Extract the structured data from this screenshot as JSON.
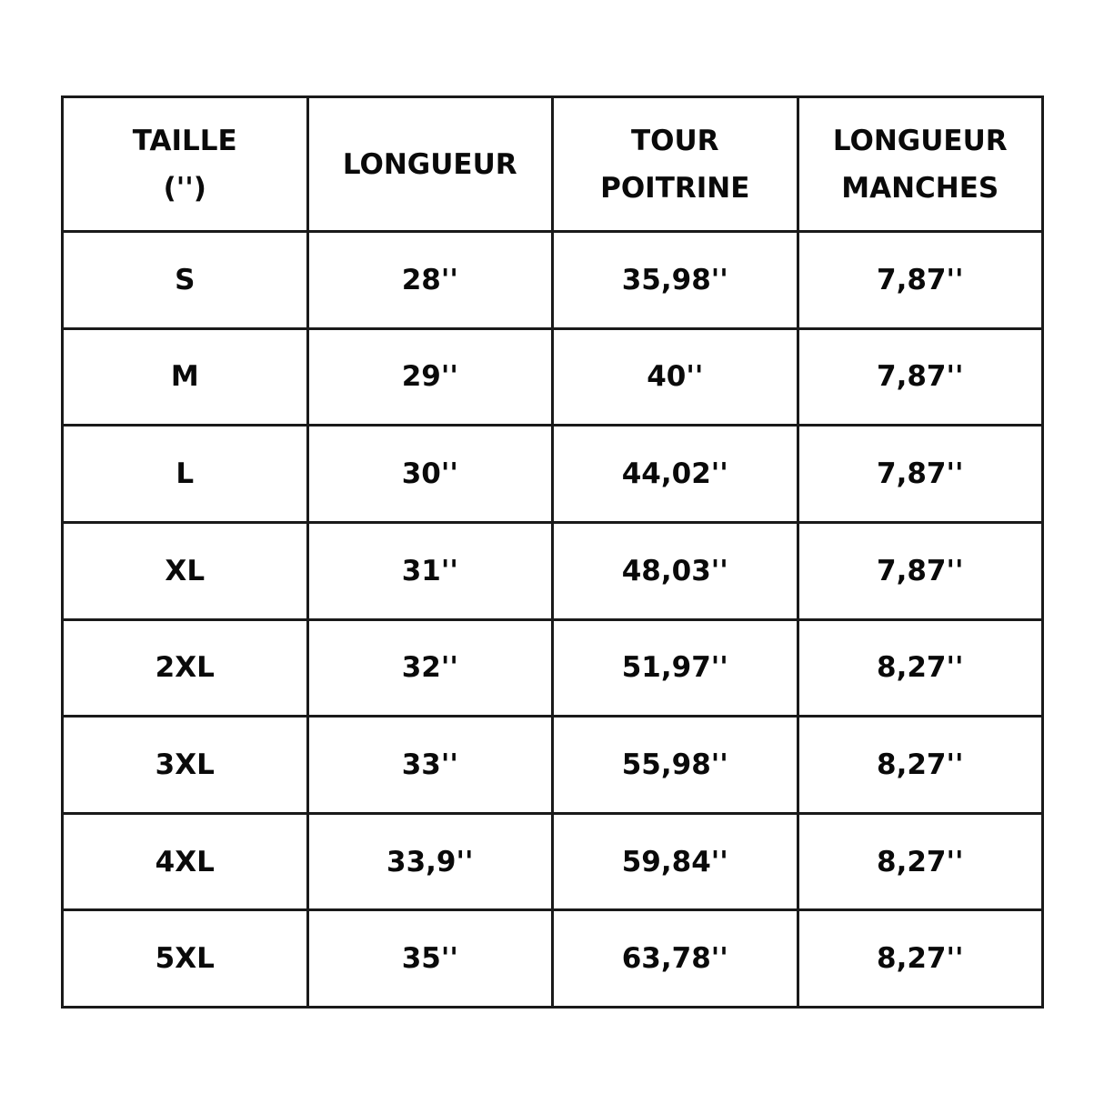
{
  "table": {
    "headers": [
      [
        "TAILLE",
        "('')"
      ],
      [
        "LONGUEUR"
      ],
      [
        "TOUR",
        "POITRINE"
      ],
      [
        "LONGUEUR",
        "MANCHES"
      ]
    ],
    "rows": [
      [
        "S",
        "28''",
        "35,98''",
        "7,87''"
      ],
      [
        "M",
        "29''",
        "40''",
        "7,87''"
      ],
      [
        "L",
        "30''",
        "44,02''",
        "7,87''"
      ],
      [
        "XL",
        "31''",
        "48,03''",
        "7,87''"
      ],
      [
        "2XL",
        "32''",
        "51,97''",
        "8,27''"
      ],
      [
        "3XL",
        "33''",
        "55,98''",
        "8,27''"
      ],
      [
        "4XL",
        "33,9''",
        "59,84''",
        "8,27''"
      ],
      [
        "5XL",
        "35''",
        "63,78''",
        "8,27''"
      ]
    ]
  }
}
